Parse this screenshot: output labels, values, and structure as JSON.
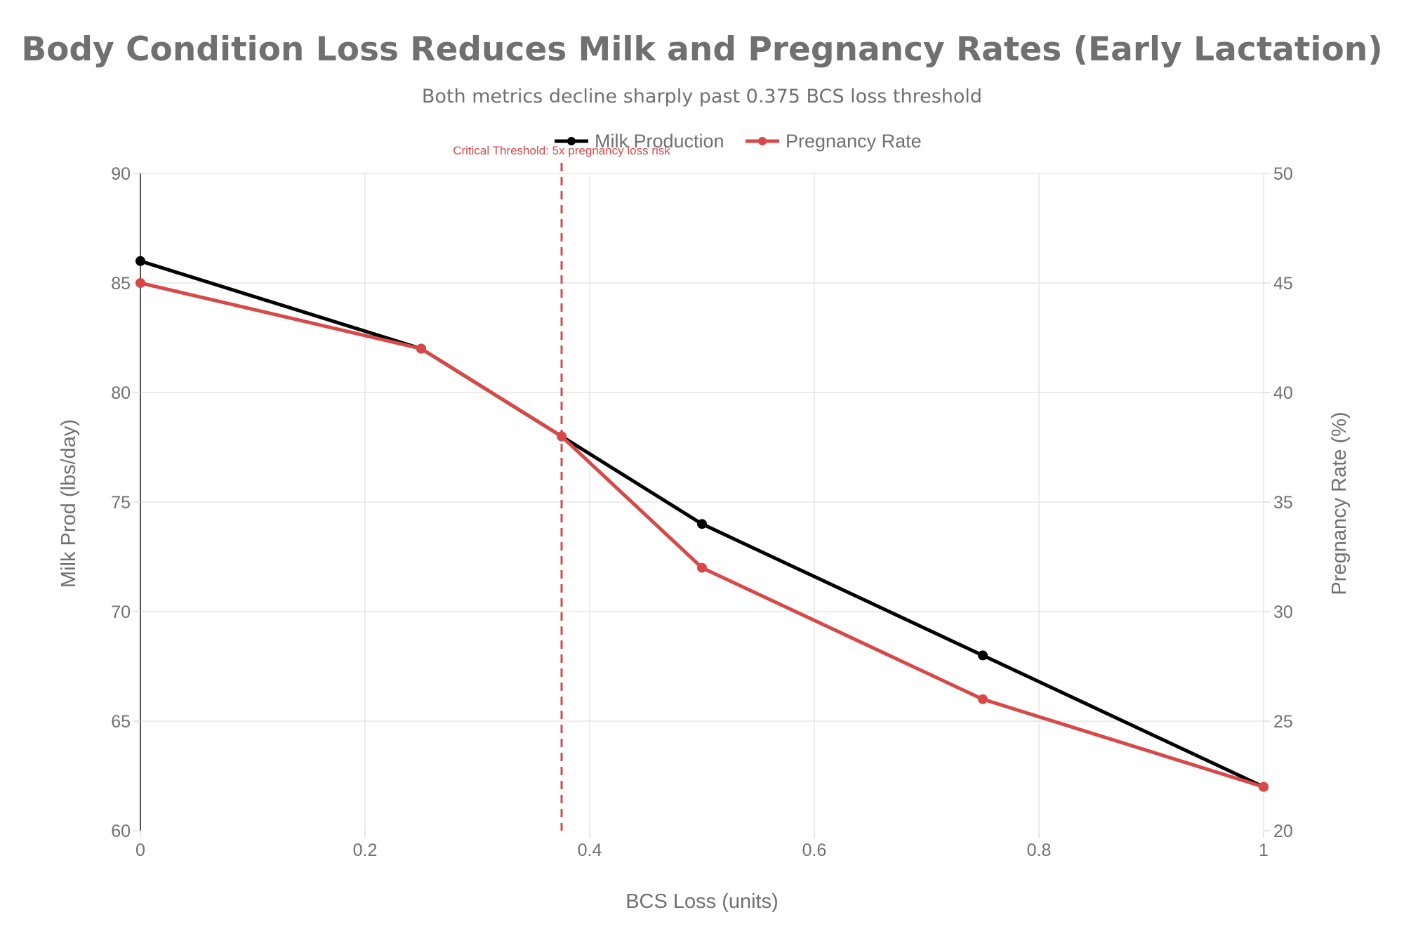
{
  "chart_data": {
    "type": "line",
    "title": "Body Condition Loss Reduces Milk and Pregnancy Rates (Early Lactation)",
    "subtitle": "Both metrics decline sharply past 0.375 BCS loss threshold",
    "xlabel": "BCS Loss (units)",
    "ylabel": "Milk Prod (lbs/day)",
    "y2label": "Pregnancy Rate (%)",
    "x": [
      0,
      0.25,
      0.375,
      0.5,
      0.75,
      1
    ],
    "series": [
      {
        "name": "Milk Production",
        "axis": "left",
        "color": "#000000",
        "values": [
          86,
          82,
          78,
          74,
          68,
          62
        ]
      },
      {
        "name": "Pregnancy Rate",
        "axis": "right",
        "color": "#d94848",
        "values": [
          45,
          42,
          38,
          32,
          26,
          22
        ]
      }
    ],
    "xlim": [
      0,
      1
    ],
    "ylim": [
      60,
      90
    ],
    "y2lim": [
      20,
      50
    ],
    "xticks": [
      0,
      0.2,
      0.4,
      0.6,
      0.8,
      1
    ],
    "xtick_labels": [
      "0",
      "0.2",
      "0.4",
      "0.6",
      "0.8",
      "1"
    ],
    "yticks": [
      60,
      65,
      70,
      75,
      80,
      85,
      90
    ],
    "ytick_labels": [
      "60",
      "65",
      "70",
      "75",
      "80",
      "85",
      "90"
    ],
    "y2ticks": [
      20,
      25,
      30,
      35,
      40,
      45,
      50
    ],
    "y2tick_labels": [
      "20",
      "25",
      "30",
      "35",
      "40",
      "45",
      "50"
    ],
    "grid": true,
    "legend": {
      "placement": "top-center",
      "orientation": "horizontal"
    },
    "annotations": [
      {
        "type": "vline",
        "x": 0.375,
        "style": "dashed",
        "color": "#d94848",
        "text": "Critical Threshold: 5x pregnancy loss risk"
      }
    ]
  }
}
